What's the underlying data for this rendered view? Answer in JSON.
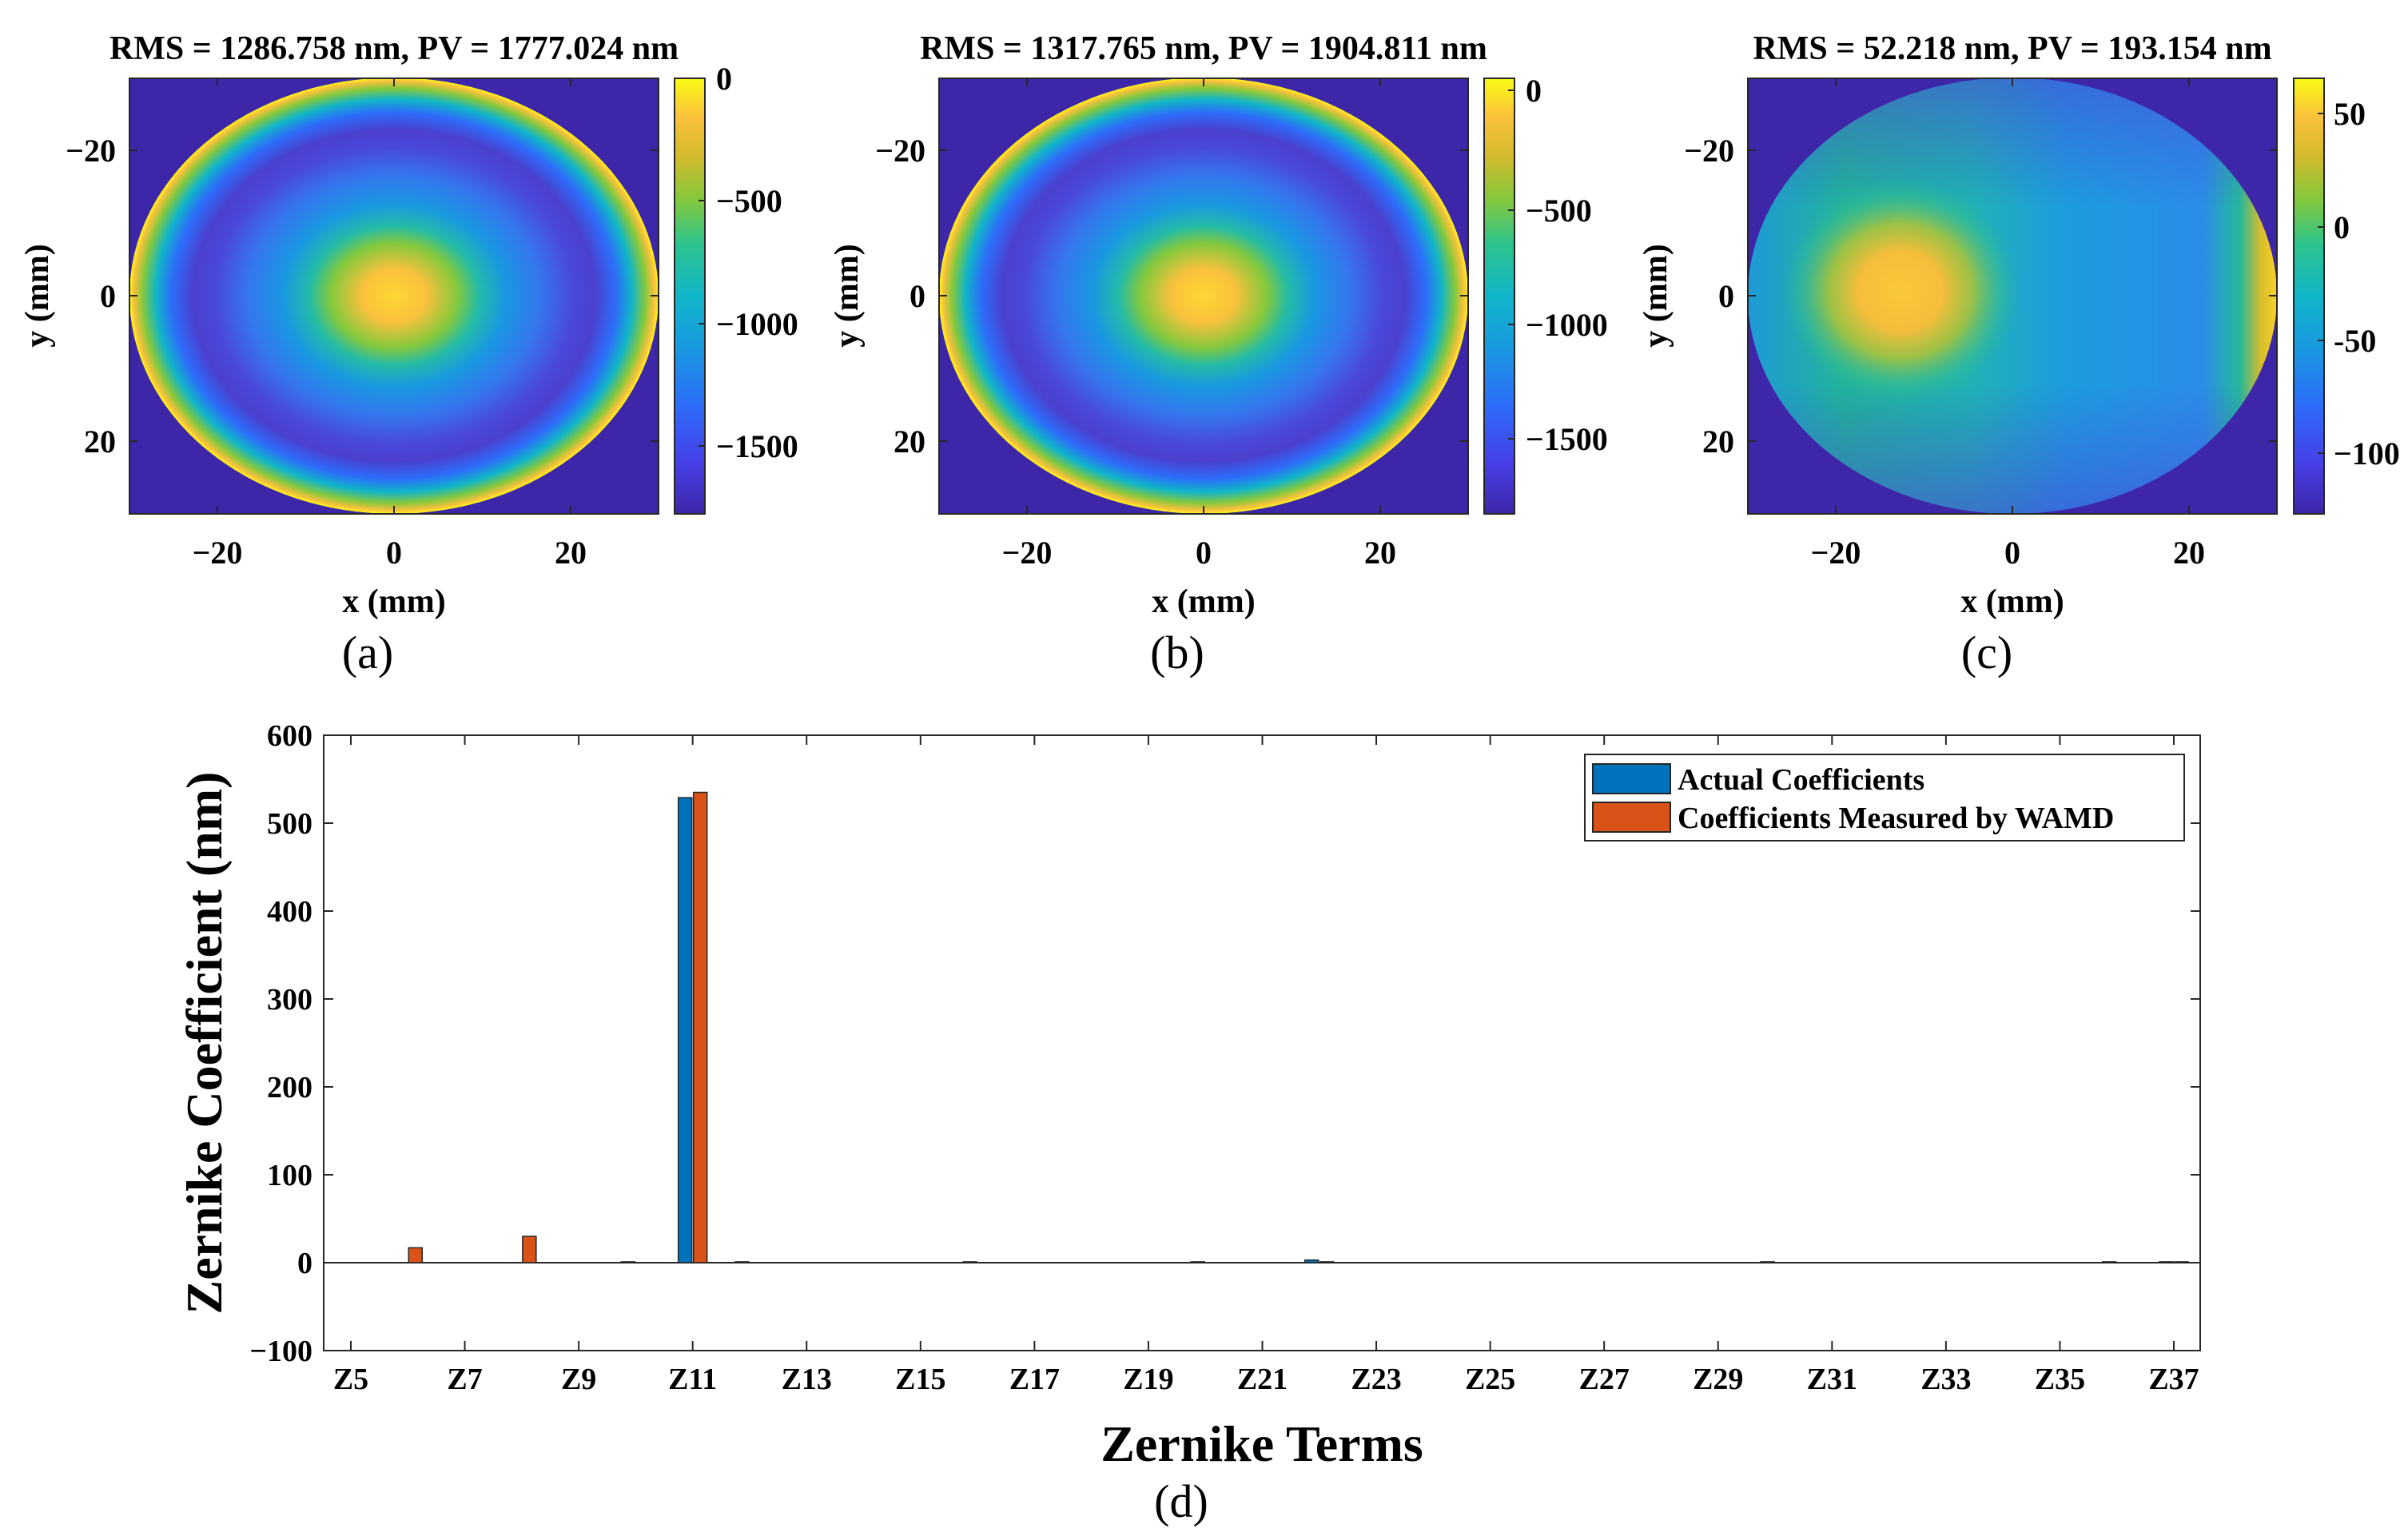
{
  "colors": {
    "actual": "#0072bd",
    "measured": "#d95319",
    "mask_purple": "#3e26a8",
    "axis": "#262626"
  },
  "chart_data": [
    {
      "type": "heatmap",
      "panel": "(a)",
      "title": "RMS = 1286.758 nm, PV = 1777.024 nm",
      "xlabel": "x (mm)",
      "ylabel": "y (mm)",
      "xlim": [
        -30,
        30
      ],
      "ylim": [
        -30,
        30
      ],
      "xticks": [
        -20,
        0,
        20
      ],
      "xtick_labels": [
        "−20",
        "0",
        "20"
      ],
      "yticks": [
        -20,
        0,
        20
      ],
      "ytick_labels": [
        "−20",
        "0",
        "20"
      ],
      "colorbar_range": [
        -1777,
        0
      ],
      "colorbar_ticks": [
        0,
        -500,
        -1000,
        -1500
      ],
      "colorbar_tick_labels": [
        "0",
        "−500",
        "−1000",
        "−1500"
      ]
    },
    {
      "type": "heatmap",
      "panel": "(b)",
      "title": "RMS = 1317.765 nm, PV = 1904.811 nm",
      "xlabel": "x (mm)",
      "ylabel": "y (mm)",
      "xlim": [
        -30,
        30
      ],
      "ylim": [
        -30,
        30
      ],
      "xticks": [
        -20,
        0,
        20
      ],
      "xtick_labels": [
        "−20",
        "0",
        "20"
      ],
      "yticks": [
        -20,
        0,
        20
      ],
      "ytick_labels": [
        "−20",
        "0",
        "20"
      ],
      "colorbar_range": [
        -1905,
        0
      ],
      "colorbar_ticks": [
        0,
        -500,
        -1000,
        -1500
      ],
      "colorbar_tick_labels": [
        "0",
        "−500",
        "−1000",
        "−1500"
      ]
    },
    {
      "type": "heatmap",
      "panel": "(c)",
      "title": "RMS = 52.218 nm, PV = 193.154 nm",
      "xlabel": "x (mm)",
      "ylabel": "y (mm)",
      "xlim": [
        -30,
        30
      ],
      "ylim": [
        -30,
        30
      ],
      "xticks": [
        -20,
        0,
        20
      ],
      "xtick_labels": [
        "−20",
        "0",
        "20"
      ],
      "yticks": [
        -20,
        0,
        20
      ],
      "ytick_labels": [
        "−20",
        "0",
        "20"
      ],
      "colorbar_range": [
        -130,
        63
      ],
      "colorbar_ticks": [
        50,
        0,
        -50,
        -100
      ],
      "colorbar_tick_labels": [
        "50",
        "0",
        "-50",
        "−100"
      ]
    },
    {
      "type": "bar",
      "panel": "(d)",
      "xlabel": "Zernike Terms",
      "ylabel": "Zernike Coefficient (nm)",
      "ylim": [
        -100,
        600
      ],
      "yticks": [
        -100,
        0,
        100,
        200,
        300,
        400,
        500,
        600
      ],
      "ytick_labels": [
        "−100",
        "0",
        "100",
        "200",
        "300",
        "400",
        "500",
        "600"
      ],
      "categories": [
        "Z5",
        "Z6",
        "Z7",
        "Z8",
        "Z9",
        "Z10",
        "Z11",
        "Z12",
        "Z13",
        "Z14",
        "Z15",
        "Z16",
        "Z17",
        "Z18",
        "Z19",
        "Z20",
        "Z21",
        "Z22",
        "Z23",
        "Z24",
        "Z25",
        "Z26",
        "Z27",
        "Z28",
        "Z29",
        "Z30",
        "Z31",
        "Z32",
        "Z33",
        "Z34",
        "Z35",
        "Z36",
        "Z37"
      ],
      "xtick_labels": [
        "Z5",
        "Z7",
        "Z9",
        "Z11",
        "Z13",
        "Z15",
        "Z17",
        "Z19",
        "Z21",
        "Z23",
        "Z25",
        "Z27",
        "Z29",
        "Z31",
        "Z33",
        "Z35",
        "Z37"
      ],
      "legend_position": "top-right",
      "series": [
        {
          "name": "Actual Coefficients",
          "values": [
            0,
            0,
            0,
            0,
            0,
            1,
            529,
            1,
            0,
            0,
            0,
            1,
            0,
            0,
            0,
            1,
            0,
            3,
            0,
            0,
            0,
            0,
            0,
            0,
            0,
            1,
            0,
            0,
            0,
            0,
            0,
            1,
            1
          ]
        },
        {
          "name": "Coefficients Measured by WAMD",
          "values": [
            0,
            17,
            0,
            30,
            0,
            0,
            535,
            0,
            0,
            0,
            0,
            0,
            0,
            0,
            0,
            0,
            0,
            1,
            0,
            0,
            0,
            0,
            0,
            0,
            0,
            0,
            0,
            0,
            0,
            0,
            0,
            0,
            1
          ]
        }
      ]
    }
  ]
}
